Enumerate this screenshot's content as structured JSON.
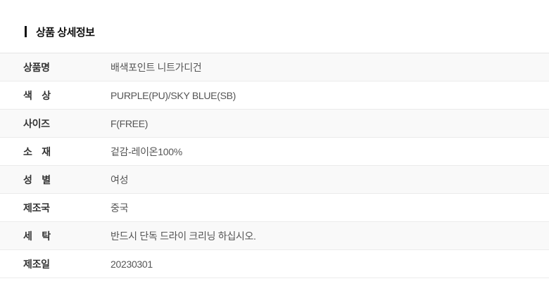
{
  "section": {
    "title": "상품 상세정보"
  },
  "table": {
    "rows": [
      {
        "label": "상품명",
        "value": "배색포인트 니트가디건"
      },
      {
        "label": "색　상",
        "value": "PURPLE(PU)/SKY BLUE(SB)"
      },
      {
        "label": "사이즈",
        "value": "F(FREE)"
      },
      {
        "label": "소　재",
        "value": "겉감-레이온100%"
      },
      {
        "label": "성　별",
        "value": "여성"
      },
      {
        "label": "제조국",
        "value": "중국"
      },
      {
        "label": "세　탁",
        "value": "반드시 단독 드라이 크리닝 하십시오."
      },
      {
        "label": "제조일",
        "value": "20230301"
      }
    ]
  },
  "colors": {
    "title_text": "#111111",
    "accent_bar": "#111111",
    "label_text": "#333333",
    "value_text": "#555555",
    "row_alt_bg": "#f9f9f9",
    "row_bg": "#ffffff",
    "divider": "#ebebeb",
    "table_top_border": "#e4e4e4"
  }
}
